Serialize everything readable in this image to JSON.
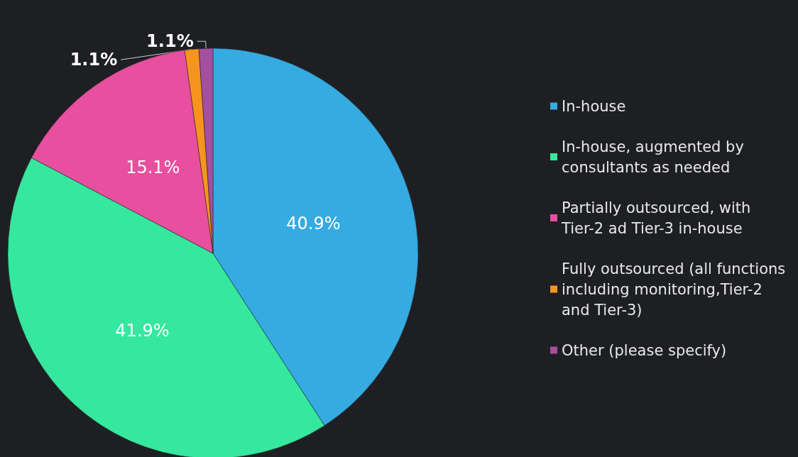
{
  "chart_data": {
    "type": "pie",
    "categories": [
      "In-house",
      "In-house, augmented by consultants as needed",
      "Partially outsourced, with Tier-2 ad Tier-3 in-house",
      "Fully outsourced (all functions including monitoring,Tier-2 and Tier-3)",
      "Other (please specify)"
    ],
    "values": [
      40.9,
      41.9,
      15.1,
      1.1,
      1.1
    ],
    "colors": [
      "#35abe2",
      "#35e89e",
      "#e84f9f",
      "#f5951f",
      "#a54f9f"
    ],
    "value_labels": [
      "40.9%",
      "41.9%",
      "15.1%",
      "1.1%",
      "1.1%"
    ],
    "legend": "right"
  }
}
